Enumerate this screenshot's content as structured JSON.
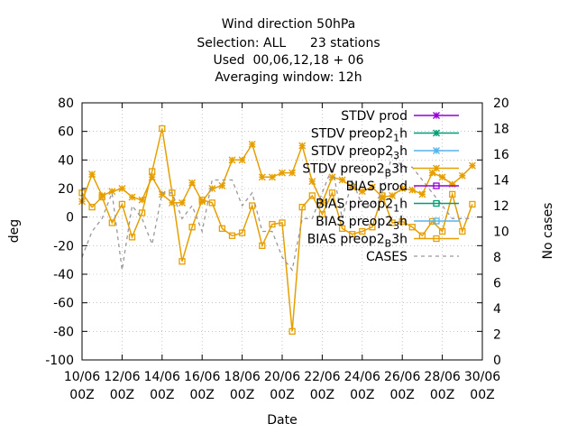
{
  "chart_data": {
    "type": "line",
    "title_lines": [
      "Wind direction 50hPa",
      "Selection: ALL      23 stations",
      "Used  00,06,12,18 + 06",
      "Averaging window: 12h"
    ],
    "xlabel": "Date",
    "ylabel": "deg",
    "y2label": "No cases",
    "ylim": [
      -100,
      80
    ],
    "y2lim": [
      0,
      20
    ],
    "yticks": [
      -100,
      -80,
      -60,
      -40,
      -20,
      0,
      20,
      40,
      60,
      80
    ],
    "y2ticks": [
      0,
      2,
      4,
      6,
      8,
      10,
      12,
      14,
      16,
      18,
      20
    ],
    "xtick_labels": [
      [
        "10/06",
        "00Z"
      ],
      [
        "12/06",
        "00Z"
      ],
      [
        "14/06",
        "00Z"
      ],
      [
        "16/06",
        "00Z"
      ],
      [
        "18/06",
        "00Z"
      ],
      [
        "20/06",
        "00Z"
      ],
      [
        "22/06",
        "00Z"
      ],
      [
        "24/06",
        "00Z"
      ],
      [
        "26/06",
        "00Z"
      ],
      [
        "28/06",
        "00Z"
      ],
      [
        "30/06",
        "00Z"
      ]
    ],
    "x_start": "10/06 00Z",
    "x_end": "30/06 00Z",
    "x_step_hours": 12,
    "grid": true,
    "legend_position": "top-right",
    "legend": [
      {
        "label": "STDV prod",
        "color": "#9400d3",
        "marker": "star"
      },
      {
        "label": "STDV preop2_1h",
        "color": "#009e73",
        "marker": "star"
      },
      {
        "label": "STDV preop2_3h",
        "color": "#56b4e9",
        "marker": "star"
      },
      {
        "label": "STDV preop2_B3h",
        "color": "#e69f00",
        "marker": "star"
      },
      {
        "label": "BIAS prod",
        "color": "#9400d3",
        "marker": "square"
      },
      {
        "label": "BIAS preop2_1h",
        "color": "#009e73",
        "marker": "square"
      },
      {
        "label": "BIAS preop2_3h",
        "color": "#56b4e9",
        "marker": "square"
      },
      {
        "label": "BIAS preop2_B3h",
        "color": "#e69f00",
        "marker": "square"
      },
      {
        "label": "CASES",
        "color": "#999999",
        "marker": "dash"
      }
    ],
    "series": [
      {
        "name": "STDV",
        "color": "#e69f00",
        "marker": "star",
        "values": [
          11,
          30,
          15,
          18,
          20,
          14,
          12,
          28,
          16,
          10,
          10,
          24,
          11,
          20,
          22,
          40,
          40,
          51,
          28,
          28,
          31,
          31,
          50,
          25,
          10,
          28,
          26,
          21,
          18,
          21,
          14,
          15,
          20,
          19,
          16,
          31,
          28,
          23,
          29,
          36
        ]
      },
      {
        "name": "BIAS",
        "color": "#e69f00",
        "marker": "square",
        "values": [
          17,
          7,
          14,
          -4,
          9,
          -14,
          3,
          32,
          62,
          17,
          -31,
          -7,
          12,
          10,
          -8,
          -13,
          -11,
          8,
          -20,
          -5,
          -4,
          -80,
          7,
          15,
          2,
          17,
          -8,
          -12,
          -10,
          -7,
          15,
          -4,
          -3,
          -7,
          -13,
          -3,
          -10,
          16,
          -10,
          9
        ]
      },
      {
        "name": "CASES",
        "color": "#999999",
        "marker": "dash",
        "axis": "y2",
        "values": [
          8,
          10,
          11,
          13,
          7,
          12,
          11,
          9,
          13,
          13,
          11,
          12,
          10,
          14,
          14,
          14,
          12,
          13,
          10,
          10,
          8,
          7,
          11,
          11,
          13,
          15,
          11,
          14,
          12,
          12,
          13,
          16,
          15,
          15,
          14,
          13,
          12,
          11,
          11,
          11
        ]
      }
    ]
  }
}
